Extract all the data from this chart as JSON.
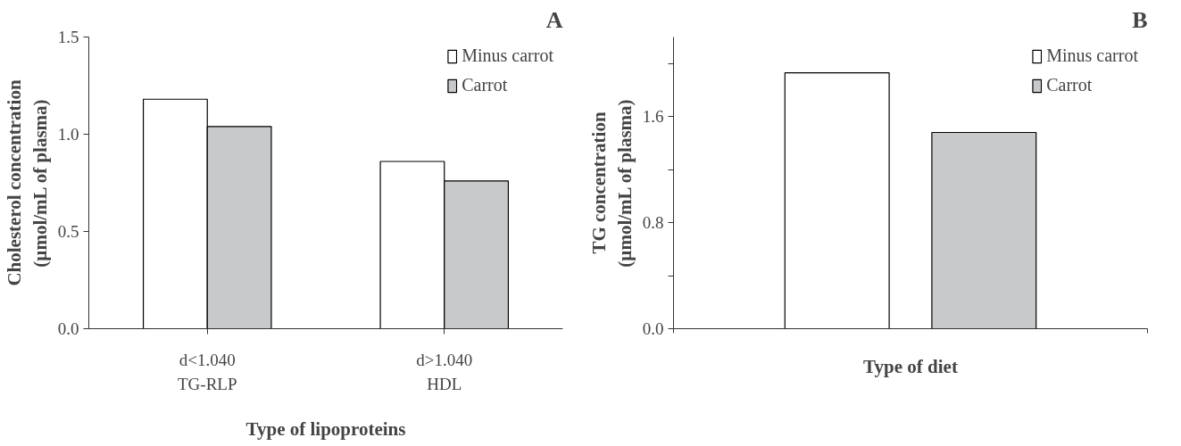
{
  "chart_data": [
    {
      "type": "bar",
      "title": "A",
      "xlabel": "Type of lipoproteins",
      "ylabel": "Cholesterol concentration\n(µmol/mL of plasma)",
      "categories": [
        "d<1.040\nTG-RLP",
        "d>1.040\nHDL"
      ],
      "series": [
        {
          "name": "Minus carrot",
          "color": "#ffffff",
          "values": [
            1.18,
            0.86
          ]
        },
        {
          "name": "Carrot",
          "color": "#c8c9cb",
          "values": [
            1.04,
            0.76
          ]
        }
      ],
      "ylim": [
        0,
        1.5
      ],
      "yticks": [
        {
          "value": 0,
          "label": "0.0"
        },
        0.5,
        {
          "value": 1,
          "label": "1.0"
        },
        1.5
      ],
      "grid": false,
      "legend": "top right"
    },
    {
      "type": "bar",
      "title": "B",
      "xlabel": "Type of diet",
      "ylabel": "TG concentration\n(µmol/mL of plasma)",
      "categories": [
        null
      ],
      "series": [
        {
          "name": "Minus carrot",
          "color": "#ffffff",
          "values": [
            1.93
          ]
        },
        {
          "name": "Carrot",
          "color": "#c8c9cb",
          "values": [
            1.48
          ]
        }
      ],
      "ylim": [
        0,
        2.2
      ],
      "yticks": [
        {
          "value": 0,
          "label": "0.0"
        },
        {
          "value": 0.4,
          "label": null
        },
        0.8,
        {
          "value": 1.2,
          "label": null
        },
        1.6,
        {
          "value": 2.0,
          "label": null
        }
      ],
      "grid": false,
      "legend": "top right",
      "tick_labels": "y"
    }
  ]
}
